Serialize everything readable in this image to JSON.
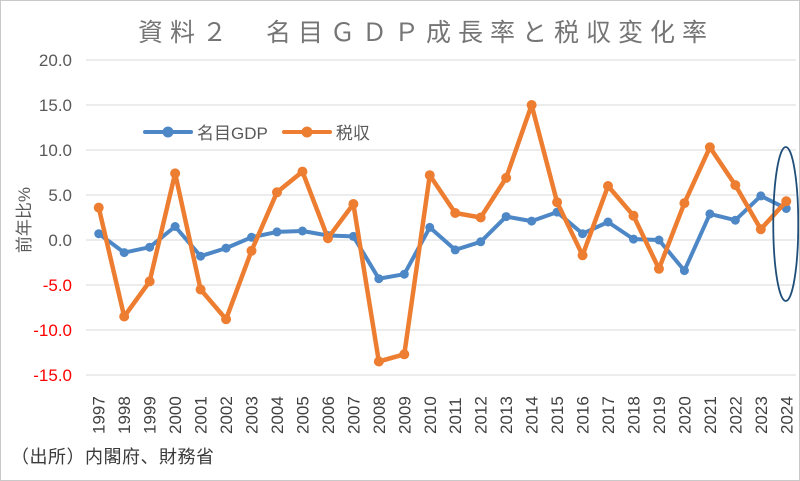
{
  "chart_data": {
    "type": "line",
    "title": "資料２　名目ＧＤＰ成長率と税収変化率",
    "ylabel": "前年比%",
    "source_note": "（出所）内閣府、財務省",
    "x": [
      "1997",
      "1998",
      "1999",
      "2000",
      "2001",
      "2002",
      "2003",
      "2004",
      "2005",
      "2006",
      "2007",
      "2008",
      "2009",
      "2010",
      "2011",
      "2012",
      "2013",
      "2014",
      "2015",
      "2016",
      "2017",
      "2018",
      "2019",
      "2020",
      "2021",
      "2022",
      "2023",
      "2024"
    ],
    "series": [
      {
        "name": "名目GDP",
        "color": "#4E87C6",
        "values": [
          0.7,
          -1.4,
          -0.8,
          1.5,
          -1.8,
          -0.9,
          0.3,
          0.9,
          1.0,
          0.5,
          0.4,
          -4.3,
          -3.8,
          1.4,
          -1.1,
          -0.2,
          2.6,
          2.1,
          3.1,
          0.7,
          2.0,
          0.1,
          0.0,
          -3.4,
          2.9,
          2.2,
          4.9,
          3.5
        ]
      },
      {
        "name": "税収",
        "color": "#ED7D31",
        "values": [
          3.6,
          -8.5,
          -4.6,
          7.4,
          -5.5,
          -8.8,
          -1.2,
          5.3,
          7.6,
          0.2,
          4.0,
          -13.5,
          -12.7,
          7.2,
          3.0,
          2.5,
          6.9,
          15.0,
          4.2,
          -1.7,
          6.0,
          2.7,
          -3.2,
          4.1,
          10.3,
          6.1,
          1.2,
          4.3
        ]
      }
    ],
    "ylim": [
      -15,
      20
    ],
    "ytick_step": 5,
    "y_tick_labels": [
      "20.0",
      "15.0",
      "10.0",
      "5.0",
      "0.0",
      "-5.0",
      "-10.0",
      "-15.0"
    ],
    "grid": true,
    "legend_position": "inside-top-left",
    "colors": {
      "grid": "#D9D9D9",
      "tick": "#595959",
      "tick_negative": "#FF0000",
      "xlabel": "#404040"
    },
    "annotation_circle": {
      "around_year": "2024",
      "color": "#1F4E79"
    }
  }
}
